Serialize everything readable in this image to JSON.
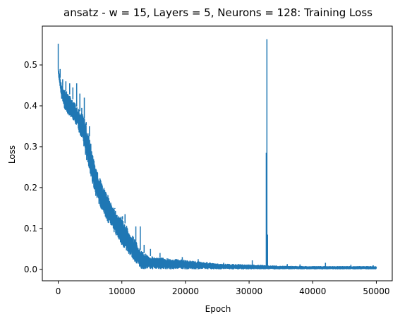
{
  "chart_data": {
    "type": "line",
    "title": "ansatz - w = 15, Layers = 5, Neurons = 128: Training Loss",
    "xlabel": "Epoch",
    "ylabel": "Loss",
    "xlim": [
      -2500,
      52500
    ],
    "ylim": [
      -0.028,
      0.595
    ],
    "xticks": [
      0,
      10000,
      20000,
      30000,
      40000,
      50000
    ],
    "yticks": [
      0.0,
      0.1,
      0.2,
      0.3,
      0.4,
      0.5
    ],
    "grid": false,
    "color": "#1f77b4",
    "series": [
      {
        "envelope": {
          "x": [
            0,
            500,
            1000,
            2000,
            3000,
            4000,
            5000,
            6000,
            7000,
            8000,
            9000,
            10000,
            11000,
            12000,
            13000,
            14000,
            15000,
            17000,
            20000,
            22000,
            25000,
            30000,
            33000,
            35000,
            40000,
            45000,
            50000
          ],
          "upper": [
            0.49,
            0.455,
            0.44,
            0.425,
            0.395,
            0.375,
            0.32,
            0.245,
            0.205,
            0.175,
            0.145,
            0.125,
            0.1,
            0.075,
            0.045,
            0.035,
            0.03,
            0.027,
            0.022,
            0.019,
            0.013,
            0.011,
            0.009,
            0.008,
            0.007,
            0.007,
            0.007
          ],
          "lower": [
            0.48,
            0.42,
            0.39,
            0.37,
            0.35,
            0.3,
            0.23,
            0.175,
            0.14,
            0.11,
            0.085,
            0.06,
            0.04,
            0.02,
            0.002,
            0.001,
            0.001,
            0.001,
            0.001,
            0.001,
            0.001,
            0.001,
            0.001,
            0.001,
            0.001,
            0.001,
            0.001
          ]
        },
        "spikes": [
          {
            "x": 0,
            "y": 0.552
          },
          {
            "x": 300,
            "y": 0.49
          },
          {
            "x": 700,
            "y": 0.465
          },
          {
            "x": 1200,
            "y": 0.46
          },
          {
            "x": 1800,
            "y": 0.455
          },
          {
            "x": 2300,
            "y": 0.445
          },
          {
            "x": 2900,
            "y": 0.455
          },
          {
            "x": 3400,
            "y": 0.43
          },
          {
            "x": 3700,
            "y": 0.395
          },
          {
            "x": 4100,
            "y": 0.42
          },
          {
            "x": 4400,
            "y": 0.36
          },
          {
            "x": 4900,
            "y": 0.35
          },
          {
            "x": 6200,
            "y": 0.23
          },
          {
            "x": 7300,
            "y": 0.17
          },
          {
            "x": 8900,
            "y": 0.15
          },
          {
            "x": 10100,
            "y": 0.13
          },
          {
            "x": 10500,
            "y": 0.135
          },
          {
            "x": 12200,
            "y": 0.105
          },
          {
            "x": 12900,
            "y": 0.105
          },
          {
            "x": 13500,
            "y": 0.06
          },
          {
            "x": 14500,
            "y": 0.05
          },
          {
            "x": 16000,
            "y": 0.04
          },
          {
            "x": 19500,
            "y": 0.03
          },
          {
            "x": 22000,
            "y": 0.025
          },
          {
            "x": 26000,
            "y": 0.016
          },
          {
            "x": 30500,
            "y": 0.022
          },
          {
            "x": 32700,
            "y": 0.285
          },
          {
            "x": 32800,
            "y": 0.563
          },
          {
            "x": 32900,
            "y": 0.085
          },
          {
            "x": 36000,
            "y": 0.013
          },
          {
            "x": 38000,
            "y": 0.012
          },
          {
            "x": 42000,
            "y": 0.016
          },
          {
            "x": 46000,
            "y": 0.011
          },
          {
            "x": 49500,
            "y": 0.01
          }
        ]
      }
    ]
  }
}
